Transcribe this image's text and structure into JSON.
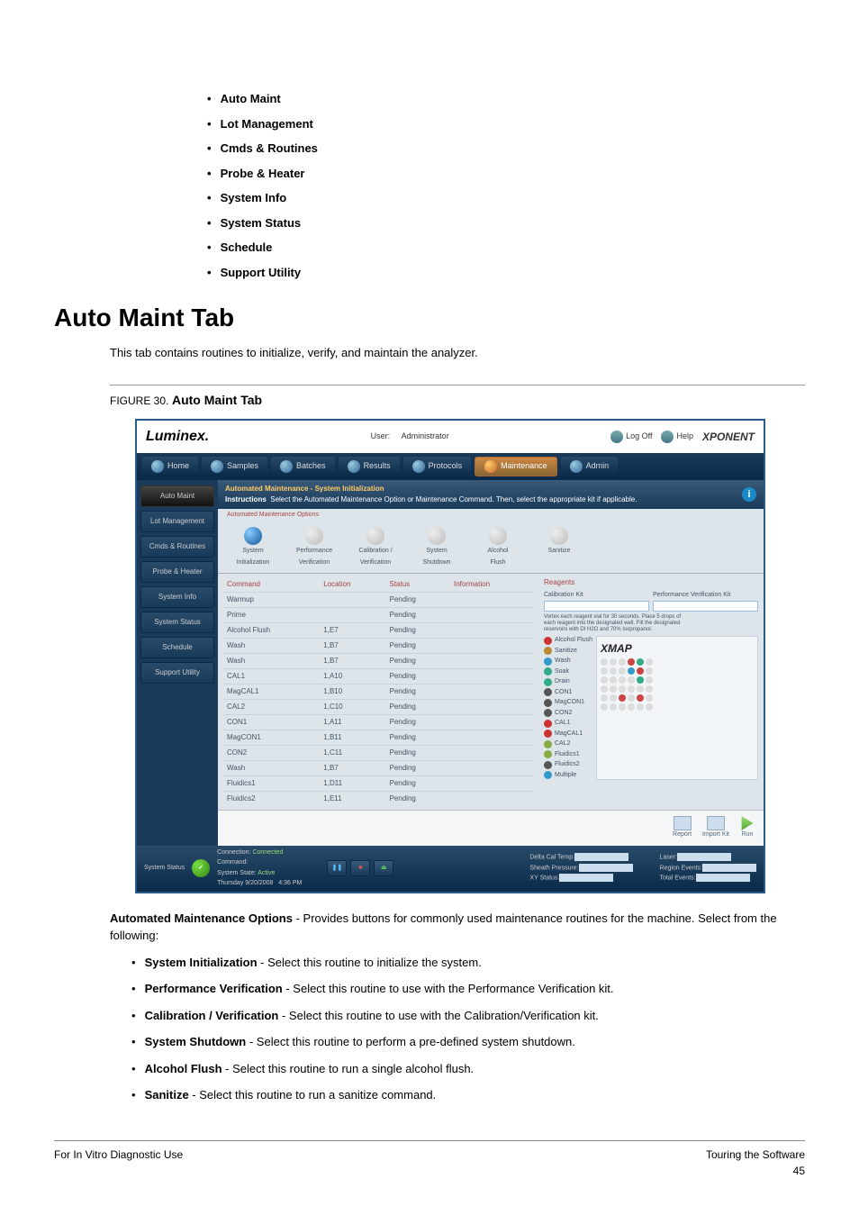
{
  "top_bullets": [
    "Auto Maint",
    "Lot Management",
    "Cmds & Routines",
    "Probe & Heater",
    "System Info",
    "System Status",
    "Schedule",
    "Support Utility"
  ],
  "h1": "Auto Maint Tab",
  "intro": "This tab contains routines to initialize, verify, and maintain the analyzer.",
  "figure": {
    "label": "FIGURE 30.",
    "title": "Auto Maint Tab"
  },
  "ss": {
    "logo": "Luminex.",
    "user_lbl": "User:",
    "user_val": "Administrator",
    "logoff": "Log Off",
    "help": "Help",
    "brand": "XPONENT",
    "nav": [
      "Home",
      "Samples",
      "Batches",
      "Results",
      "Protocols",
      "Maintenance",
      "Admin"
    ],
    "nav_selected": 5,
    "side": [
      "Auto Maint",
      "Lot Management",
      "Cmds & Routines",
      "Probe & Heater",
      "System Info",
      "System Status",
      "Schedule",
      "Support Utility"
    ],
    "side_selected": 0,
    "instr_title": "Automated Maintenance - System Initialization",
    "instr_lbl": "Instructions",
    "instr_txt": "Select the Automated Maintenance Option or Maintenance Command. Then, select the appropriate kit if applicable.",
    "opts_title": "Automated Maintenance Options",
    "opts": [
      {
        "l1": "System",
        "l2": "Initialization",
        "sel": true
      },
      {
        "l1": "Performance",
        "l2": "Verification"
      },
      {
        "l1": "Calibration /",
        "l2": "Verification"
      },
      {
        "l1": "System",
        "l2": "Shutdown"
      },
      {
        "l1": "Alcohol",
        "l2": "Flush"
      },
      {
        "l1": "Sanitize",
        "l2": ""
      }
    ],
    "cmd_headers": [
      "Command",
      "Location",
      "Status",
      "Information"
    ],
    "cmd_rows": [
      [
        "Warmup",
        "",
        "Pending",
        ""
      ],
      [
        "Prime",
        "",
        "Pending",
        ""
      ],
      [
        "Alcohol Flush",
        "1,E7",
        "Pending",
        ""
      ],
      [
        "Wash",
        "1,B7",
        "Pending",
        ""
      ],
      [
        "Wash",
        "1,B7",
        "Pending",
        ""
      ],
      [
        "CAL1",
        "1,A10",
        "Pending",
        ""
      ],
      [
        "MagCAL1",
        "1,B10",
        "Pending",
        ""
      ],
      [
        "CAL2",
        "1,C10",
        "Pending",
        ""
      ],
      [
        "CON1",
        "1,A11",
        "Pending",
        ""
      ],
      [
        "MagCON1",
        "1,B11",
        "Pending",
        ""
      ],
      [
        "CON2",
        "1,C11",
        "Pending",
        ""
      ],
      [
        "Wash",
        "1,B7",
        "Pending",
        ""
      ],
      [
        "Fluidics1",
        "1,D11",
        "Pending",
        ""
      ],
      [
        "Fluidics2",
        "1,E11",
        "Pending",
        ""
      ]
    ],
    "reagents_title": "Reagents",
    "calkit": "Calibration Kit",
    "perfkit": "Performance Verification Kit",
    "reag_note1": "Vortex each reagent vial for 30 seconds. Place 5 drops of",
    "reag_note2": "each reagent into the designated well. Fill the designated",
    "reag_note3": "reservoirs with DI H2O and 70% Isopropanol.",
    "reag_items": [
      {
        "c": "#c33",
        "t": "Alcohol Flush"
      },
      {
        "c": "#b83",
        "t": "Sanitize"
      },
      {
        "c": "#39c",
        "t": "Wash"
      },
      {
        "c": "#3a8",
        "t": "Soak"
      },
      {
        "c": "#3a8",
        "t": "Drain"
      },
      {
        "c": "#555",
        "t": "CON1"
      },
      {
        "c": "#555",
        "t": "MagCON1"
      },
      {
        "c": "#555",
        "t": "CON2"
      },
      {
        "c": "#c33",
        "t": "CAL1"
      },
      {
        "c": "#c33",
        "t": "MagCAL1"
      },
      {
        "c": "#8a4",
        "t": "CAL2"
      },
      {
        "c": "#8a4",
        "t": "Fluidics1"
      },
      {
        "c": "#555",
        "t": "Fluidics2"
      },
      {
        "c": "#39c",
        "t": "Multiple"
      }
    ],
    "xmap": "XMAP",
    "btns": [
      {
        "t": "Report"
      },
      {
        "t": "Import Kit"
      },
      {
        "t": "Run"
      }
    ],
    "status": {
      "title": "System Status",
      "conn_l": "Connection:",
      "conn_v": "Connected",
      "cmd_l": "Command:",
      "state_l": "System State:",
      "state_v": "Active",
      "date": "Thursday 9/20/2008",
      "time": "4:36 PM",
      "delta": "Delta Cal Temp:",
      "sheath": "Sheath Pressure:",
      "xy": "XY Status:",
      "laser": "Laser:",
      "region": "Region Events:",
      "total": "Total Events:"
    }
  },
  "desc_intro_bold": "Automated Maintenance Options",
  "desc_intro_rest": " - Provides buttons for commonly used maintenance routines for the machine. Select from the following:",
  "desc_items": [
    {
      "b": "System Initialization",
      "r": " - Select this routine to initialize the system."
    },
    {
      "b": "Performance Verification",
      "r": " - Select this routine to use with the Performance Verification kit."
    },
    {
      "b": "Calibration / Verification",
      "r": " - Select this routine to use with the Calibration/Verification kit."
    },
    {
      "b": "System Shutdown",
      "r": " - Select this routine to perform a pre-defined system shutdown."
    },
    {
      "b": "Alcohol Flush",
      "r": " - Select this routine to run a single alcohol flush."
    },
    {
      "b": "Sanitize",
      "r": " - Select this routine to run a sanitize command."
    }
  ],
  "footer": {
    "left": "For In Vitro Diagnostic Use",
    "right1": "Touring the Software",
    "right2": "45"
  }
}
